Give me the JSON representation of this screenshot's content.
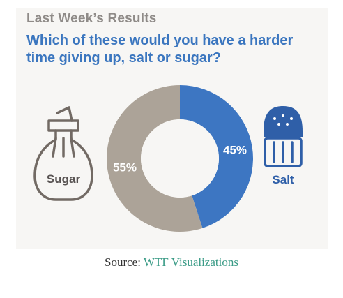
{
  "header": {
    "title": "Last Week’s Results",
    "question": "Which of these would you have a harder time giving up, salt or sugar?"
  },
  "chart_data": {
    "type": "pie",
    "donut": true,
    "categories": [
      "Salt",
      "Sugar"
    ],
    "values": [
      45,
      55
    ],
    "value_labels": [
      "45%",
      "55%"
    ],
    "colors": [
      "#3d76c2",
      "#aca398"
    ],
    "start_angle_deg": 0,
    "direction": "clockwise"
  },
  "icons": {
    "sugar": {
      "icon": "sugar-dispenser-icon",
      "label": "Sugar"
    },
    "salt": {
      "icon": "salt-shaker-icon",
      "label": "Salt"
    }
  },
  "source": {
    "prefix": "Source: ",
    "link_text": "WTF Visualizations",
    "link_color": "#3a9b86"
  }
}
